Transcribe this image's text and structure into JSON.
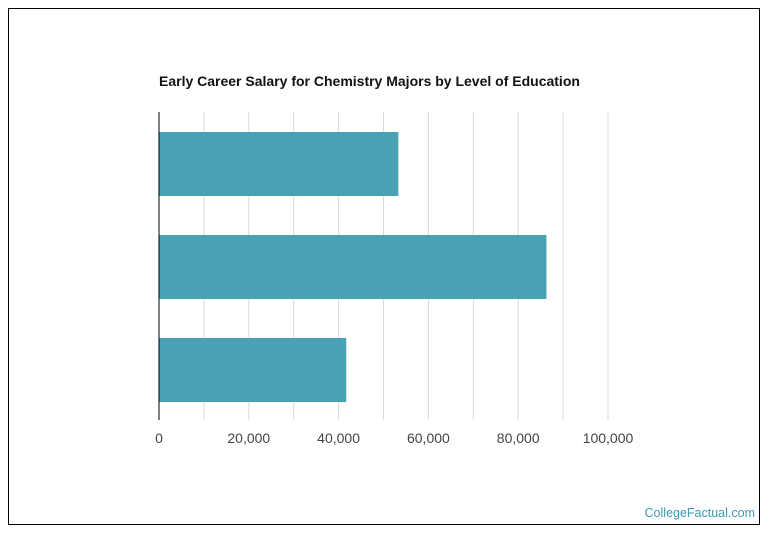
{
  "chart_data": {
    "type": "bar",
    "orientation": "horizontal",
    "title": "Early Career Salary for Chemistry Majors by Level of Education",
    "categories": [
      "",
      "",
      ""
    ],
    "values": [
      53300,
      86300,
      41700
    ],
    "xlim": [
      0,
      100000
    ],
    "x_ticks": [
      0,
      20000,
      40000,
      60000,
      80000,
      100000
    ],
    "x_tick_labels": [
      "0",
      "20,000",
      "40,000",
      "60,000",
      "80,000",
      "100,000"
    ],
    "xlabel": "",
    "ylabel": "",
    "grid": true,
    "legend": "none",
    "bar_color": "#4aa1b3",
    "grid_color": "#d9d9d9",
    "axis_color": "#000000"
  },
  "credit": "CollegeFactual.com"
}
